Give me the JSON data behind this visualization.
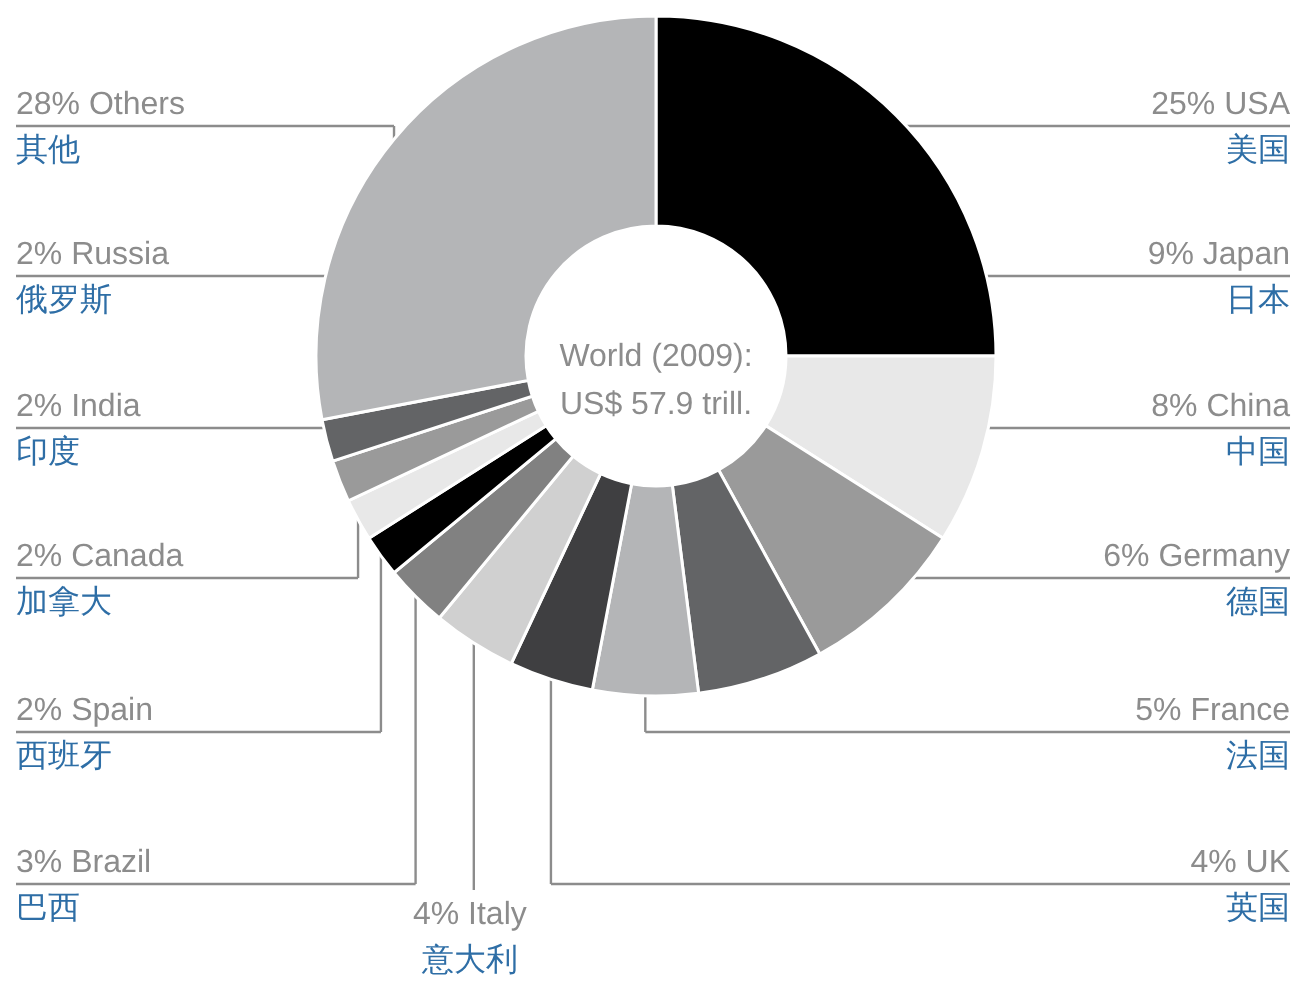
{
  "chart_data": {
    "type": "donut",
    "categories": [
      "USA\n美国",
      "Japan\n日本",
      "China\n中国",
      "Germany\n德国",
      "France\n法国",
      "UK\n英国",
      "Italy\n意大利",
      "Brazil\n巴西",
      "Spain\n西班牙",
      "Canada\n加拿大",
      "India\n印度",
      "Russia\n俄罗斯",
      "Others\n其他"
    ],
    "values": [
      25,
      9,
      8,
      6,
      5,
      4,
      4,
      3,
      2,
      2,
      2,
      2,
      28
    ],
    "value_labels": [
      "25%",
      "9%",
      "8%",
      "6%",
      "5%",
      "4%",
      "4%",
      "3%",
      "2%",
      "2%",
      "2%",
      "2%",
      "28%"
    ],
    "colors": [
      "#000000",
      "#e8e8e8",
      "#9a9a9a",
      "#636466",
      "#b4b5b7",
      "#3f3f41",
      "#d0d0d0",
      "#818181",
      "#000000",
      "#e8e8e8",
      "#9a9a9a",
      "#636466",
      "#b4b5b7"
    ],
    "annotations": [
      "World (2009):\nUS$ 57.9 trill."
    ]
  }
}
